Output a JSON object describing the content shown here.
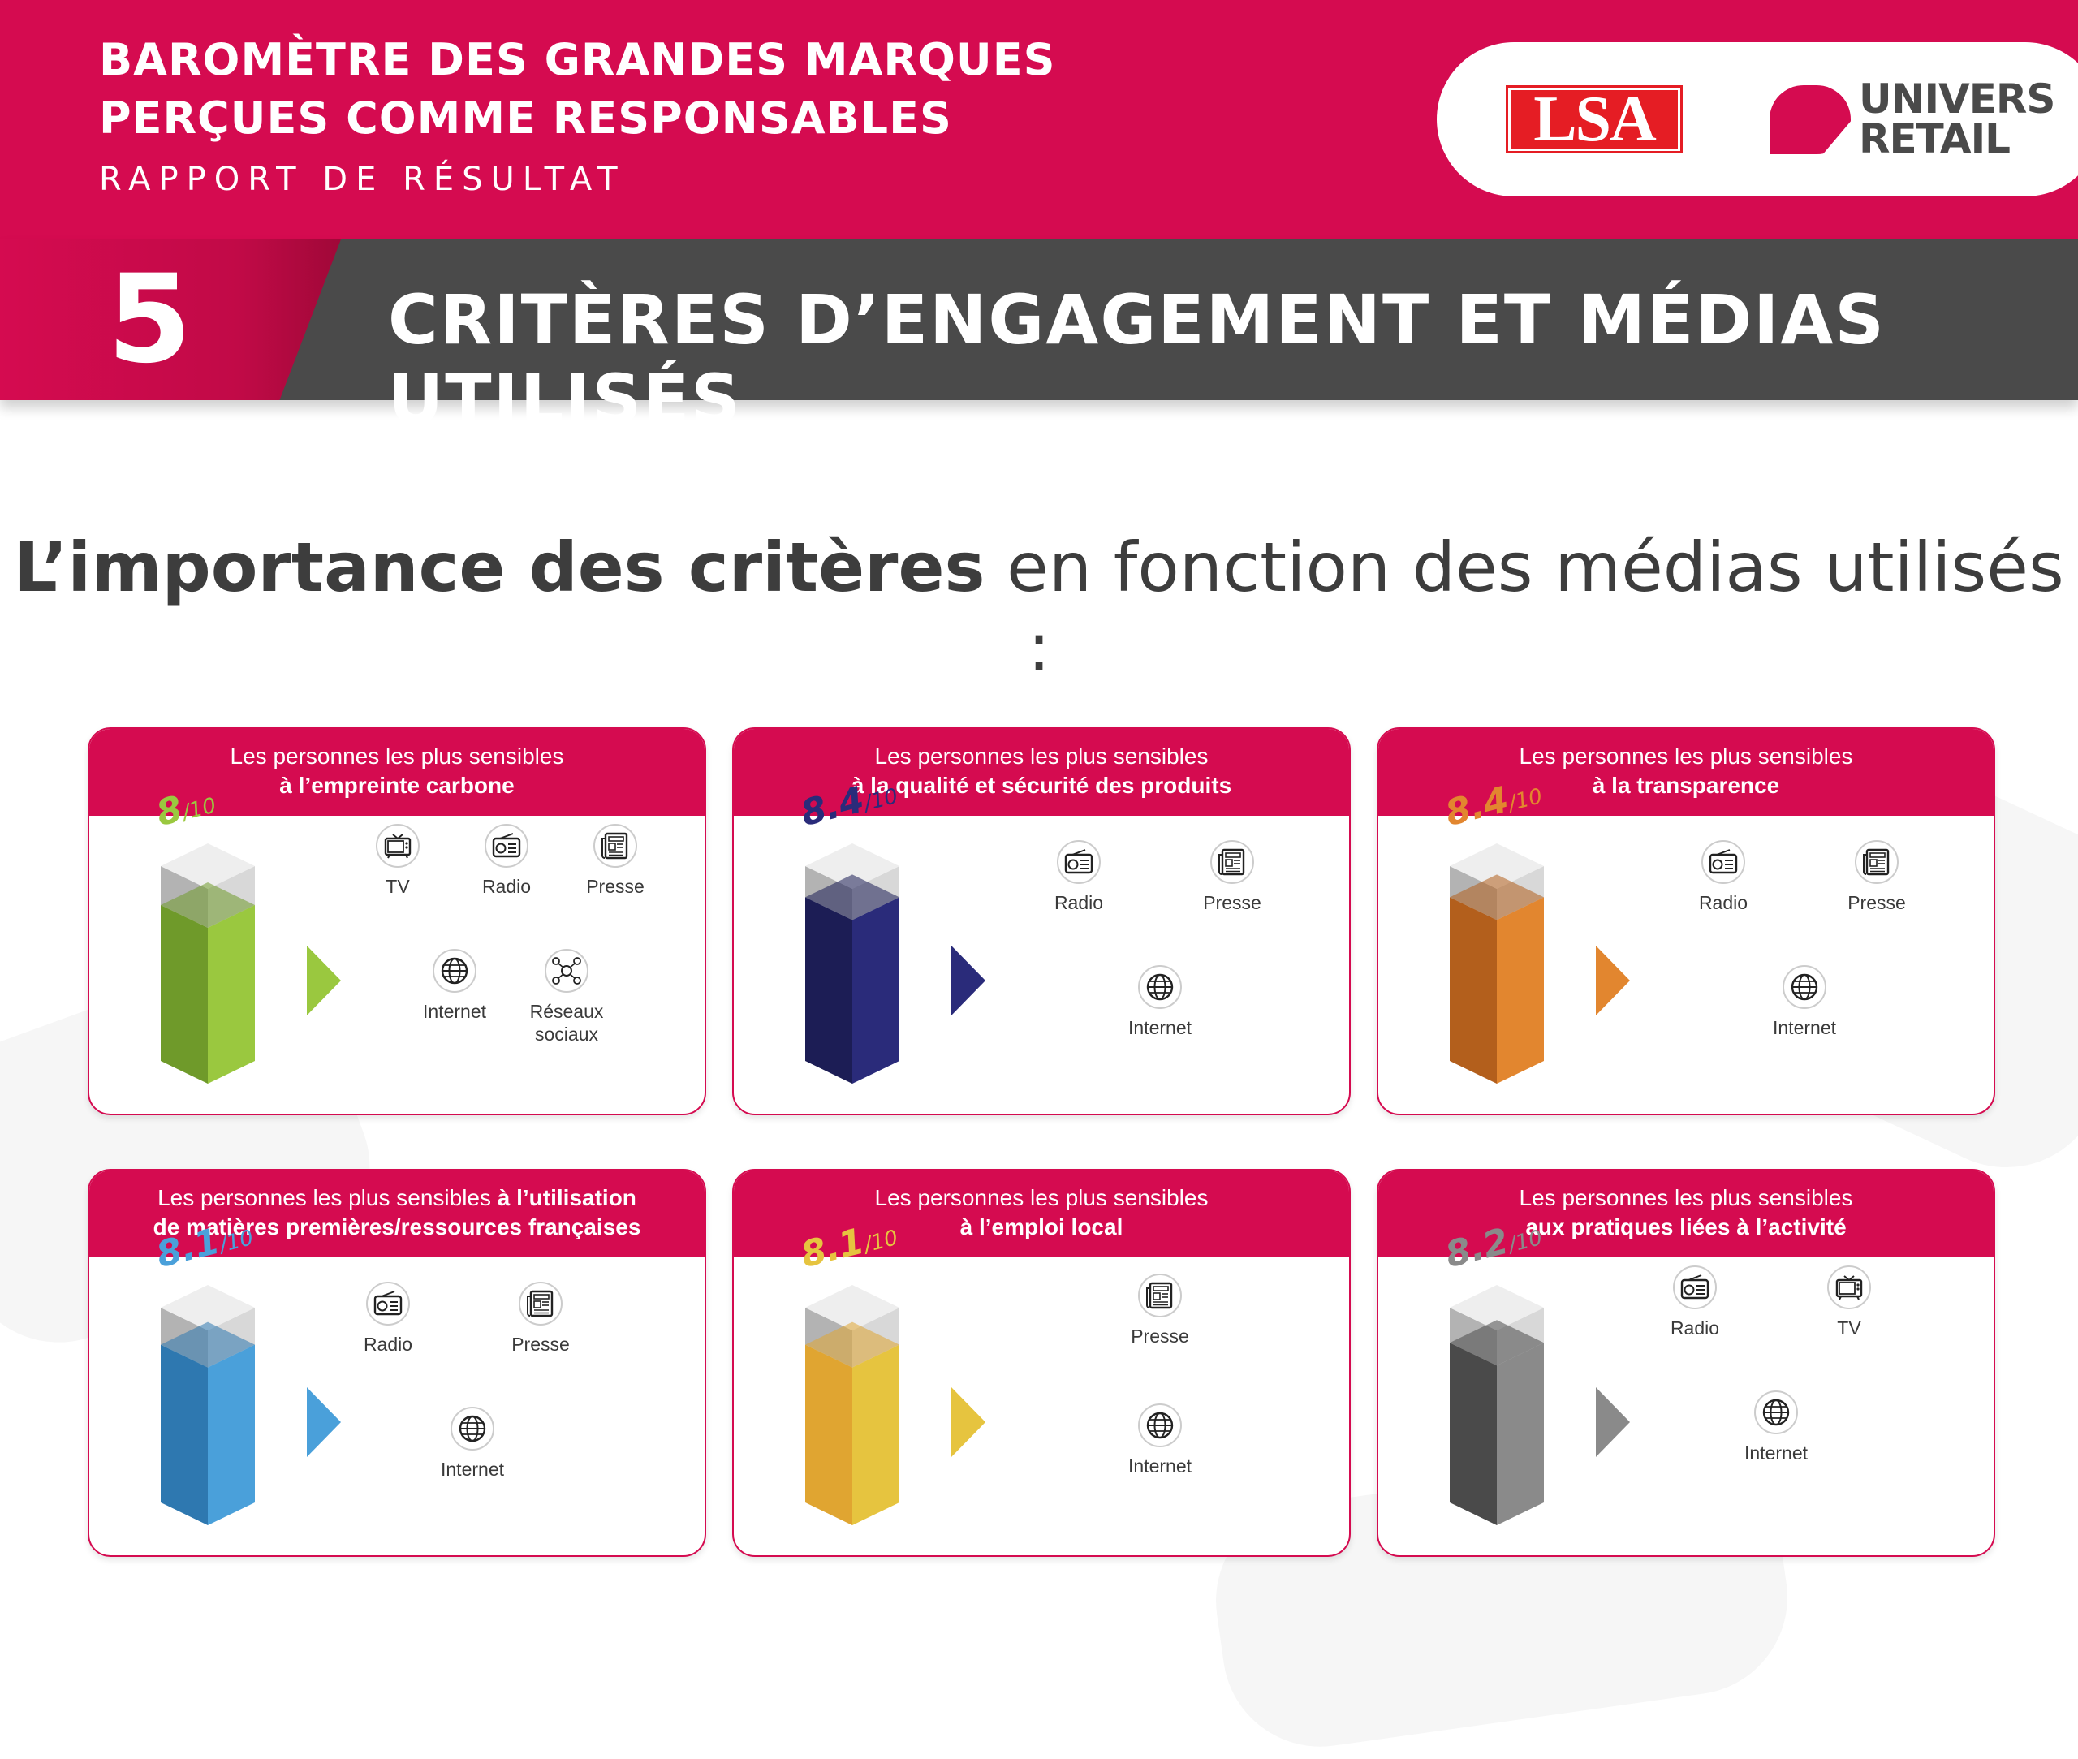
{
  "header": {
    "title_line1": "BAROMÈTRE DES GRANDES MARQUES",
    "title_line2": "PERÇUES COMME RESPONSABLES",
    "subtitle": "RAPPORT DE RÉSULTAT",
    "logo_lsa": "LSA",
    "logo_univers_line1": "UNIVERS",
    "logo_univers_line2": "RETAIL"
  },
  "section": {
    "number": "5",
    "title": "CRITÈRES D’ENGAGEMENT ET MÉDIAS UTILISÉS"
  },
  "intro": {
    "bold": "L’importance des critères",
    "rest": " en fonction des médias utilisés :"
  },
  "colors": {
    "brand": "#d50b50",
    "band": "#4a4a4a"
  },
  "cards": [
    {
      "pre": "Les personnes les plus sensibles",
      "em": "à l’empreinte carbone",
      "score_value": "8",
      "score_suffix": "/10",
      "score_num": 8.0,
      "color_light": "#9ac83f",
      "color_dark": "#6f9a2a",
      "media": [
        {
          "label": "TV",
          "icon": "tv-icon"
        },
        {
          "label": "Radio",
          "icon": "radio-icon"
        },
        {
          "label": "Presse",
          "icon": "newspaper-icon"
        },
        {
          "label": "Internet",
          "icon": "globe-icon"
        },
        {
          "label": "Réseaux sociaux",
          "icon": "social-network-icon"
        }
      ]
    },
    {
      "pre": "Les personnes les plus sensibles",
      "em": "à la qualité et sécurité des produits",
      "score_value": "8.4",
      "score_suffix": "/10",
      "score_num": 8.4,
      "color_light": "#2a2b7a",
      "color_dark": "#1c1d55",
      "media": [
        {
          "label": "Radio",
          "icon": "radio-icon"
        },
        {
          "label": "Presse",
          "icon": "newspaper-icon"
        },
        {
          "label": "Internet",
          "icon": "globe-icon"
        }
      ]
    },
    {
      "pre": "Les personnes les plus sensibles",
      "em": "à la transparence",
      "score_value": "8.4",
      "score_suffix": "/10",
      "score_num": 8.4,
      "color_light": "#e2862f",
      "color_dark": "#b35f1c",
      "media": [
        {
          "label": "Radio",
          "icon": "radio-icon"
        },
        {
          "label": "Presse",
          "icon": "newspaper-icon"
        },
        {
          "label": "Internet",
          "icon": "globe-icon"
        }
      ]
    },
    {
      "pre": "Les personnes les plus sensibles",
      "em_inline": "à l’utilisation",
      "em": "de matières premières/ressources françaises",
      "score_value": "8.1",
      "score_suffix": "/10",
      "score_num": 8.1,
      "color_light": "#4aa0da",
      "color_dark": "#2e78b0",
      "media": [
        {
          "label": "Radio",
          "icon": "radio-icon"
        },
        {
          "label": "Presse",
          "icon": "newspaper-icon"
        },
        {
          "label": "Internet",
          "icon": "globe-icon"
        }
      ]
    },
    {
      "pre": "Les personnes les plus sensibles",
      "em": "à l’emploi local",
      "score_value": "8.1",
      "score_suffix": "/10",
      "score_num": 8.1,
      "color_light": "#e6c43f",
      "color_dark": "#e0a531",
      "media": [
        {
          "label": "Presse",
          "icon": "newspaper-icon"
        },
        {
          "label": "Internet",
          "icon": "globe-icon"
        }
      ]
    },
    {
      "pre": "Les personnes les plus sensibles",
      "em": "aux pratiques liées à l’activité",
      "score_value": "8.2",
      "score_suffix": "/10",
      "score_num": 8.2,
      "color_light": "#8a8a8a",
      "color_dark": "#4a4a4a",
      "media": [
        {
          "label": "Radio",
          "icon": "radio-icon"
        },
        {
          "label": "TV",
          "icon": "tv-icon"
        },
        {
          "label": "Internet",
          "icon": "globe-icon"
        }
      ]
    }
  ]
}
